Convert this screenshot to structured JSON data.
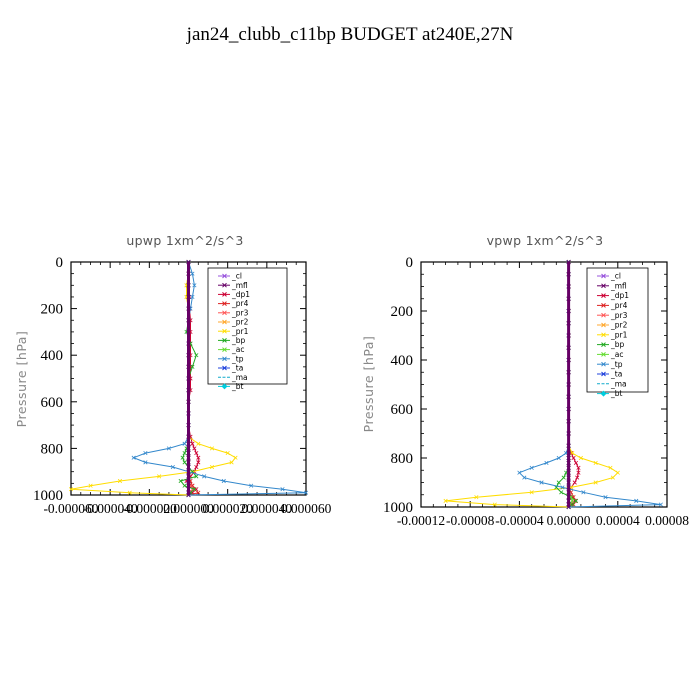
{
  "title": "jan24_clubb_c11bp  BUDGET at240E,27N",
  "chart_data": [
    {
      "type": "line",
      "title": "upwp   1xm^2/s^3",
      "ylabel": "Pressure [hPa]",
      "xlabel": "",
      "ylim": [
        1000,
        0
      ],
      "xlim": [
        -6e-05,
        6e-05
      ],
      "yticks": [
        0,
        200,
        400,
        600,
        800,
        1000
      ],
      "ytick_labels": [
        "0",
        "200",
        "400",
        "600",
        "800",
        "1000"
      ],
      "xtick_labels": [
        "-0.000060",
        "-0.000040",
        "-0.000020",
        "0.000000",
        "0.000020",
        "0.000040",
        "0.000060"
      ],
      "legend_position": "top-right",
      "p": [
        0,
        50,
        100,
        150,
        200,
        250,
        300,
        350,
        400,
        450,
        500,
        550,
        600,
        650,
        700,
        750,
        780,
        800,
        820,
        840,
        860,
        880,
        900,
        920,
        940,
        960,
        975,
        990,
        1000
      ],
      "series": [
        {
          "name": "_cl",
          "color": "#9955dd",
          "marker": "x",
          "values": [
            0,
            0,
            0,
            0,
            0,
            0,
            0,
            0,
            0,
            0,
            0,
            0,
            0,
            0,
            0,
            0,
            0,
            0,
            0,
            0,
            0,
            0,
            0,
            0,
            0,
            0,
            0,
            0,
            0
          ]
        },
        {
          "name": "_mfl",
          "color": "#660066",
          "marker": "x",
          "values": [
            0,
            0,
            0,
            0,
            0,
            0,
            0,
            0,
            0,
            0,
            0,
            0,
            0,
            0,
            0,
            0,
            0,
            0,
            0,
            0,
            0,
            0,
            0,
            0,
            0,
            0,
            0,
            0,
            0
          ]
        },
        {
          "name": "_dp1",
          "color": "#cc0033",
          "marker": "x",
          "values": [
            0,
            0,
            0,
            5e-07,
            5e-07,
            1e-06,
            1e-06,
            1e-06,
            1e-06,
            1e-06,
            1e-06,
            1e-06,
            0,
            0,
            0,
            1e-06,
            2e-06,
            3e-06,
            4e-06,
            5e-06,
            5e-06,
            4e-06,
            3e-06,
            1e-06,
            -1e-06,
            2e-06,
            4e-06,
            2e-06,
            0
          ]
        },
        {
          "name": "_pr4",
          "color": "#dd2222",
          "marker": "x",
          "values": [
            0,
            0,
            0,
            0,
            0,
            0,
            0,
            0,
            0,
            0,
            0,
            0,
            0,
            0,
            0,
            0,
            0,
            0,
            0,
            0,
            0,
            0,
            0,
            0,
            1e-06,
            2e-06,
            3e-06,
            5e-06,
            0
          ]
        },
        {
          "name": "_pr3",
          "color": "#ff5555",
          "marker": "x",
          "values": [
            0,
            0,
            0,
            0,
            0,
            0,
            0,
            0,
            0,
            0,
            0,
            0,
            0,
            0,
            0,
            0,
            0,
            0,
            0,
            0,
            0,
            0,
            0,
            0,
            0,
            1e-06,
            2e-06,
            1e-06,
            0
          ]
        },
        {
          "name": "_pr2",
          "color": "#ffaa33",
          "marker": "x",
          "values": [
            0,
            0,
            -1e-06,
            -1e-06,
            0,
            0,
            0,
            0,
            0,
            0,
            0,
            0,
            0,
            0,
            0,
            0,
            0,
            0,
            0,
            0,
            0,
            0,
            0,
            0,
            0,
            0,
            0,
            0,
            0
          ]
        },
        {
          "name": "_pr1",
          "color": "#ffdd00",
          "marker": "x",
          "values": [
            0,
            0,
            -1e-06,
            -1e-06,
            0,
            0,
            0,
            0,
            0,
            0,
            0,
            0,
            0,
            0,
            0,
            0,
            5e-06,
            1.2e-05,
            2e-05,
            2.4e-05,
            2.2e-05,
            1.2e-05,
            2e-06,
            -1.5e-05,
            -3.5e-05,
            -5e-05,
            -6e-05,
            -3e-05,
            0
          ]
        },
        {
          "name": "_bp",
          "color": "#22aa22",
          "marker": "x",
          "values": [
            0,
            0,
            0,
            0,
            0,
            0,
            -1e-06,
            1e-06,
            4e-06,
            2e-06,
            0,
            0,
            0,
            0,
            0,
            0,
            0,
            -1e-06,
            -2e-06,
            -3e-06,
            -2e-06,
            0,
            2e-06,
            4e-06,
            -4e-06,
            -2e-06,
            3e-06,
            1e-06,
            0
          ]
        },
        {
          "name": "_ac",
          "color": "#66dd33",
          "marker": "x",
          "values": [
            0,
            0,
            0,
            0,
            0,
            0,
            0,
            0,
            0,
            0,
            0,
            0,
            0,
            0,
            0,
            0,
            0,
            0,
            0,
            0,
            0,
            0,
            0,
            0,
            0,
            0,
            0,
            0,
            0
          ]
        },
        {
          "name": "_tp",
          "color": "#3388cc",
          "marker": "x",
          "values": [
            0,
            2e-06,
            3e-06,
            2e-06,
            1e-06,
            0,
            0,
            0,
            0,
            0,
            0,
            0,
            0,
            0,
            0,
            0,
            -2e-06,
            -1e-05,
            -2.2e-05,
            -2.8e-05,
            -2.2e-05,
            -8e-06,
            0,
            8e-06,
            1.8e-05,
            3.2e-05,
            4.8e-05,
            6e-05,
            0
          ]
        },
        {
          "name": "_ta",
          "color": "#2244dd",
          "marker": "x",
          "values": [
            0,
            0,
            0,
            0,
            0,
            0,
            0,
            0,
            0,
            0,
            0,
            0,
            0,
            0,
            0,
            0,
            0,
            0,
            0,
            0,
            0,
            0,
            0,
            0,
            0,
            0,
            0,
            0,
            0
          ]
        },
        {
          "name": "_ma",
          "color": "#11aacc",
          "marker": "",
          "values": [
            0,
            0,
            0,
            0,
            0,
            0,
            0,
            0,
            0,
            0,
            0,
            0,
            0,
            0,
            0,
            0,
            0,
            0,
            0,
            0,
            0,
            0,
            0,
            0,
            0,
            0,
            0,
            0,
            0
          ]
        },
        {
          "name": "_bt",
          "color": "#00ccdd",
          "marker": "diamond",
          "values": [
            0,
            0,
            0,
            0,
            0,
            0,
            0,
            0,
            0,
            0,
            0,
            0,
            0,
            0,
            0,
            0,
            0,
            0,
            0,
            0,
            0,
            0,
            0,
            0,
            0,
            0,
            0,
            0,
            0
          ]
        }
      ]
    },
    {
      "type": "line",
      "title": "vpwp   1xm^2/s^3",
      "ylabel": "Pressure [hPa]",
      "xlabel": "",
      "ylim": [
        1000,
        0
      ],
      "xlim": [
        -0.00012,
        8e-05
      ],
      "yticks": [
        0,
        200,
        400,
        600,
        800,
        1000
      ],
      "ytick_labels": [
        "0",
        "200",
        "400",
        "600",
        "800",
        "1000"
      ],
      "xtick_labels": [
        "-0.00012",
        "-0.00008",
        "-0.00004",
        "0.00000",
        "0.00004",
        "0.00008"
      ],
      "legend_position": "top-right",
      "p": [
        0,
        50,
        100,
        150,
        200,
        250,
        300,
        350,
        400,
        450,
        500,
        550,
        600,
        650,
        700,
        750,
        780,
        800,
        820,
        840,
        860,
        880,
        900,
        920,
        940,
        960,
        975,
        990,
        1000
      ],
      "series": [
        {
          "name": "_cl",
          "color": "#9955dd",
          "marker": "x",
          "values": [
            0,
            0,
            0,
            0,
            0,
            0,
            0,
            0,
            0,
            0,
            0,
            0,
            0,
            0,
            0,
            0,
            0,
            0,
            0,
            0,
            0,
            0,
            0,
            0,
            0,
            0,
            0,
            0,
            0
          ]
        },
        {
          "name": "_mfl",
          "color": "#660066",
          "marker": "x",
          "values": [
            0,
            0,
            0,
            0,
            0,
            0,
            0,
            0,
            0,
            0,
            0,
            0,
            0,
            0,
            0,
            0,
            0,
            0,
            0,
            0,
            0,
            0,
            0,
            0,
            0,
            0,
            0,
            0,
            0
          ]
        },
        {
          "name": "_dp1",
          "color": "#cc0033",
          "marker": "x",
          "values": [
            0,
            0,
            0,
            0,
            0,
            0,
            0,
            0,
            0,
            0,
            0,
            0,
            0,
            0,
            0,
            0,
            2e-06,
            4e-06,
            6e-06,
            8e-06,
            8e-06,
            7e-06,
            5e-06,
            2e-06,
            0,
            3e-06,
            5e-06,
            2e-06,
            0
          ]
        },
        {
          "name": "_pr4",
          "color": "#dd2222",
          "marker": "x",
          "values": [
            0,
            0,
            0,
            0,
            0,
            0,
            0,
            0,
            0,
            0,
            0,
            0,
            0,
            0,
            0,
            0,
            0,
            0,
            0,
            0,
            0,
            0,
            0,
            0,
            2e-06,
            4e-06,
            6e-06,
            4e-06,
            0
          ]
        },
        {
          "name": "_pr3",
          "color": "#ff5555",
          "marker": "x",
          "values": [
            0,
            0,
            0,
            0,
            0,
            0,
            0,
            0,
            0,
            0,
            0,
            0,
            0,
            0,
            0,
            0,
            0,
            0,
            0,
            0,
            0,
            0,
            0,
            0,
            0,
            2e-06,
            3e-06,
            1e-06,
            0
          ]
        },
        {
          "name": "_pr2",
          "color": "#ffaa33",
          "marker": "x",
          "values": [
            0,
            0,
            0,
            0,
            0,
            0,
            0,
            0,
            0,
            0,
            0,
            0,
            0,
            0,
            0,
            0,
            0,
            0,
            0,
            0,
            0,
            0,
            0,
            0,
            0,
            0,
            0,
            0,
            0
          ]
        },
        {
          "name": "_pr1",
          "color": "#ffdd00",
          "marker": "x",
          "values": [
            0,
            0,
            0,
            0,
            0,
            0,
            0,
            0,
            0,
            0,
            0,
            0,
            0,
            0,
            0,
            0,
            3e-06,
            1e-05,
            2.2e-05,
            3.4e-05,
            4e-05,
            3.6e-05,
            2.2e-05,
            2e-06,
            -3e-05,
            -7.5e-05,
            -0.0001,
            -6e-05,
            0
          ]
        },
        {
          "name": "_bp",
          "color": "#22aa22",
          "marker": "x",
          "values": [
            0,
            0,
            0,
            0,
            0,
            0,
            0,
            0,
            0,
            0,
            0,
            0,
            0,
            0,
            0,
            0,
            0,
            0,
            0,
            0,
            -2e-06,
            -4e-06,
            -8e-06,
            -1e-05,
            -6e-06,
            2e-06,
            6e-06,
            3e-06,
            0
          ]
        },
        {
          "name": "_ac",
          "color": "#66dd33",
          "marker": "x",
          "values": [
            0,
            0,
            0,
            0,
            0,
            0,
            0,
            0,
            0,
            0,
            0,
            0,
            0,
            0,
            0,
            0,
            0,
            0,
            0,
            0,
            0,
            0,
            0,
            0,
            0,
            2e-06,
            3e-06,
            1e-06,
            0
          ]
        },
        {
          "name": "_tp",
          "color": "#3388cc",
          "marker": "x",
          "values": [
            0,
            0,
            0,
            0,
            0,
            0,
            0,
            0,
            0,
            0,
            0,
            0,
            0,
            0,
            0,
            0,
            -2e-06,
            -8e-06,
            -1.8e-05,
            -3e-05,
            -4e-05,
            -3.6e-05,
            -2.2e-05,
            -5e-06,
            1.2e-05,
            3e-05,
            5.5e-05,
            7.5e-05,
            0
          ]
        },
        {
          "name": "_ta",
          "color": "#2244dd",
          "marker": "x",
          "values": [
            0,
            0,
            0,
            0,
            0,
            0,
            0,
            0,
            0,
            0,
            0,
            0,
            0,
            0,
            0,
            0,
            0,
            0,
            0,
            0,
            0,
            0,
            0,
            0,
            0,
            0,
            0,
            0,
            0
          ]
        },
        {
          "name": "_ma",
          "color": "#11aacc",
          "marker": "",
          "values": [
            0,
            0,
            0,
            0,
            0,
            0,
            0,
            0,
            0,
            0,
            0,
            0,
            0,
            0,
            0,
            0,
            0,
            0,
            0,
            0,
            0,
            0,
            0,
            0,
            0,
            0,
            0,
            0,
            0
          ]
        },
        {
          "name": "_bt",
          "color": "#00ccdd",
          "marker": "diamond",
          "values": [
            0,
            0,
            0,
            0,
            0,
            0,
            0,
            0,
            0,
            0,
            0,
            0,
            0,
            0,
            0,
            0,
            0,
            0,
            0,
            0,
            0,
            0,
            0,
            0,
            0,
            0,
            0,
            0,
            0
          ]
        }
      ]
    }
  ]
}
